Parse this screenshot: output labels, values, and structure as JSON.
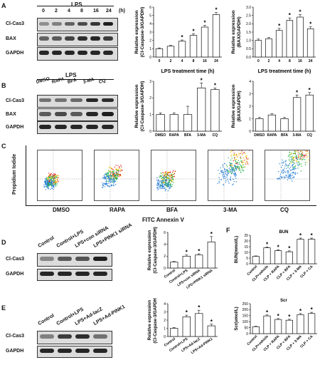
{
  "panelA": {
    "letter": "A",
    "lps_label": "LPS",
    "times": [
      "0",
      "2",
      "4",
      "8",
      "16",
      "24"
    ],
    "time_unit": "(h)",
    "rows": [
      "Cl-Cas3",
      "BAX",
      "GAPDH"
    ]
  },
  "panelB": {
    "letter": "B",
    "lps_label": "LPS",
    "groups": [
      "DMSO",
      "RAPA",
      "BFA",
      "3-MA",
      "CQ"
    ],
    "rows": [
      "Cl-Cas3",
      "BAX",
      "GAPDH"
    ]
  },
  "panelC": {
    "letter": "C",
    "ylabel": "Propidium Iodide",
    "xlabel": "FITC Annexin V",
    "groups": [
      "DMSO",
      "RAPA",
      "BFA",
      "3-MA",
      "CQ"
    ]
  },
  "panelD": {
    "letter": "D",
    "groups": [
      "Control",
      "Control+LPS",
      "LPS+con siRNA",
      "LPS+PINK1 siRNA"
    ],
    "rows": [
      "Cl-Cas3",
      "GAPDH"
    ]
  },
  "panelE": {
    "letter": "E",
    "groups": [
      "Control",
      "Control+LPS",
      "LPS+Ad-lacZ",
      "LPS+Ad-PINK1"
    ],
    "rows": [
      "Cl-Cas3",
      "GAPDH"
    ]
  },
  "panelF": {
    "letter": "F"
  },
  "chart_data": [
    {
      "id": "A1",
      "type": "bar",
      "ylabel": "Relative expression (Cl-Caspase-3/GAPDH)",
      "xlabel": "LPS treatment time (h)",
      "categories": [
        "0",
        "2",
        "4",
        "8",
        "16",
        "24"
      ],
      "values": [
        1.0,
        1.3,
        1.9,
        2.6,
        3.6,
        5.1
      ],
      "errors": [
        0.1,
        0.1,
        0.15,
        0.2,
        0.2,
        0.25
      ],
      "stars": [
        "",
        "",
        "*",
        "*",
        "*",
        "*"
      ],
      "ylim": [
        0,
        6
      ],
      "yticks": [
        "0",
        "1",
        "2",
        "3",
        "4",
        "5",
        "6"
      ]
    },
    {
      "id": "A2",
      "type": "bar",
      "ylabel": "Relative expression (BAX/GAPDH)",
      "xlabel": "LPS treatment time (h)",
      "categories": [
        "0",
        "2",
        "4",
        "8",
        "16",
        "24"
      ],
      "values": [
        1.0,
        1.1,
        1.6,
        2.2,
        2.4,
        1.7
      ],
      "errors": [
        0.08,
        0.08,
        0.12,
        0.15,
        0.15,
        0.12
      ],
      "stars": [
        "",
        "",
        "*",
        "*",
        "*",
        "*"
      ],
      "ylim": [
        0,
        3
      ],
      "yticks": [
        "0.0",
        "0.5",
        "1.0",
        "1.5",
        "2.0",
        "2.5",
        "3.0"
      ]
    },
    {
      "id": "B1",
      "type": "bar",
      "ylabel": "Relative expression (Cl-Caspase-3/GAPDH)",
      "categories": [
        "DMSO",
        "RAPA",
        "BFA",
        "3-MA",
        "CQ"
      ],
      "values": [
        1.0,
        1.0,
        1.0,
        2.6,
        2.5
      ],
      "errors": [
        0.1,
        0.1,
        0.5,
        0.3,
        0.1
      ],
      "stars": [
        "",
        "",
        "",
        "*",
        "*"
      ],
      "ylim": [
        0,
        3
      ],
      "yticks": [
        "0",
        "1",
        "2",
        "3"
      ]
    },
    {
      "id": "B2",
      "type": "bar",
      "ylabel": "Relative expression (BAX/GAPDH)",
      "categories": [
        "DMSO",
        "RAPA",
        "BFA",
        "3-MA",
        "CQ"
      ],
      "values": [
        1.0,
        1.3,
        1.0,
        2.7,
        2.9
      ],
      "errors": [
        0.1,
        0.1,
        0.1,
        0.2,
        0.2
      ],
      "stars": [
        "",
        "",
        "",
        "*",
        "*"
      ],
      "ylim": [
        0,
        4
      ],
      "yticks": [
        "0",
        "1",
        "2",
        "3",
        "4"
      ]
    },
    {
      "id": "D1",
      "type": "bar",
      "ylabel": "Relative expression (Cl-Caspase-3/GAPDH)",
      "categories": [
        "Control",
        "Control+LPS",
        "LPS+con siRNA",
        "LPS+PINK1 siRNA"
      ],
      "values": [
        1.0,
        2.0,
        2.2,
        4.4
      ],
      "errors": [
        0.1,
        0.2,
        0.2,
        0.9
      ],
      "stars": [
        "",
        "*",
        "*",
        "*"
      ],
      "ylim": [
        0,
        6
      ],
      "yticks": [
        "0",
        "2",
        "4",
        "6"
      ]
    },
    {
      "id": "E1",
      "type": "bar",
      "ylabel": "Relative expression (Cl-Caspase-3/GAPDH)",
      "categories": [
        "Control",
        "Control+LPS",
        "LPS+Ad-lacZ",
        "LPS+Ad-PINK1"
      ],
      "values": [
        1.0,
        2.4,
        2.8,
        1.3
      ],
      "errors": [
        0.1,
        0.2,
        0.4,
        0.2
      ],
      "stars": [
        "",
        "*",
        "*",
        "*"
      ],
      "ylim": [
        0,
        4
      ],
      "yticks": [
        "0",
        "1",
        "2",
        "3",
        "4"
      ]
    },
    {
      "id": "F1",
      "type": "bar",
      "title": "BUN",
      "ylabel": "BUN(mmol/L)",
      "categories": [
        "Control",
        "CLP+vehicle",
        "CLP + RAPA",
        "CLP + BFA",
        "CLP + 3-MA",
        "CLP + CA"
      ],
      "values": [
        6.5,
        14.0,
        11.5,
        10.5,
        21.5,
        21.5
      ],
      "errors": [
        0.4,
        0.8,
        0.8,
        0.8,
        1.0,
        1.0
      ],
      "stars": [
        "",
        "*",
        "*",
        "*",
        "*",
        "*"
      ],
      "ylim": [
        0,
        25
      ],
      "yticks": [
        "0",
        "5",
        "10",
        "15",
        "20",
        "25"
      ]
    },
    {
      "id": "F2",
      "type": "bar",
      "title": "Scr",
      "ylabel": "Scr(umol/L)",
      "categories": [
        "Control",
        "CLP+vehicle",
        "CLP + RAPA",
        "CLP + BFA",
        "CLP + 3-MA",
        "CLP + CA"
      ],
      "values": [
        58,
        148,
        118,
        112,
        158,
        168
      ],
      "errors": [
        4,
        8,
        8,
        8,
        10,
        10
      ],
      "stars": [
        "",
        "*",
        "*",
        "*",
        "*",
        "*"
      ],
      "ylim": [
        0,
        250
      ],
      "yticks": [
        "0",
        "50",
        "100",
        "150",
        "200",
        "250"
      ]
    }
  ]
}
